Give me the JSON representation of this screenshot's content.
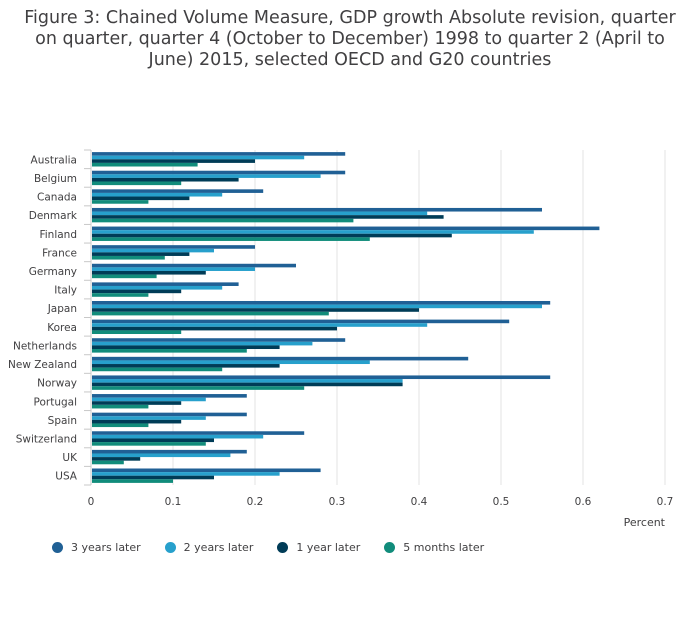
{
  "title": "Figure 3: Chained Volume Measure, GDP growth Absolute revision, quarter on quarter, quarter 4 (October to December) 1998 to quarter 2 (April to June) 2015, selected OECD and G20 countries",
  "chart_data": {
    "type": "bar",
    "orientation": "horizontal",
    "categories": [
      "Australia",
      "Belgium",
      "Canada",
      "Denmark",
      "Finland",
      "France",
      "Germany",
      "Italy",
      "Japan",
      "Korea",
      "Netherlands",
      "New Zealand",
      "Norway",
      "Portugal",
      "Spain",
      "Switzerland",
      "UK",
      "USA"
    ],
    "series": [
      {
        "name": "3 years later",
        "color": "#206095",
        "values": [
          0.31,
          0.31,
          0.21,
          0.55,
          0.62,
          0.2,
          0.25,
          0.18,
          0.56,
          0.51,
          0.31,
          0.46,
          0.56,
          0.19,
          0.19,
          0.26,
          0.19,
          0.28
        ]
      },
      {
        "name": "2 years later",
        "color": "#27a0cc",
        "values": [
          0.26,
          0.28,
          0.16,
          0.41,
          0.54,
          0.15,
          0.2,
          0.16,
          0.55,
          0.41,
          0.27,
          0.34,
          0.38,
          0.14,
          0.14,
          0.21,
          0.17,
          0.23
        ]
      },
      {
        "name": "1 year later",
        "color": "#003c57",
        "values": [
          0.2,
          0.18,
          0.12,
          0.43,
          0.44,
          0.12,
          0.14,
          0.11,
          0.4,
          0.3,
          0.23,
          0.23,
          0.38,
          0.11,
          0.11,
          0.15,
          0.06,
          0.15
        ]
      },
      {
        "name": "5 months later",
        "color": "#118c7b",
        "values": [
          0.13,
          0.11,
          0.07,
          0.32,
          0.34,
          0.09,
          0.08,
          0.07,
          0.29,
          0.11,
          0.19,
          0.16,
          0.26,
          0.07,
          0.07,
          0.14,
          0.04,
          0.1
        ]
      }
    ],
    "xlim": [
      0,
      0.7
    ],
    "xticks": [
      "0",
      "0.1",
      "0.2",
      "0.3",
      "0.4",
      "0.5",
      "0.6",
      "0.7"
    ],
    "xlabel": "Percent",
    "grid": true,
    "legend_position": "bottom-left"
  }
}
